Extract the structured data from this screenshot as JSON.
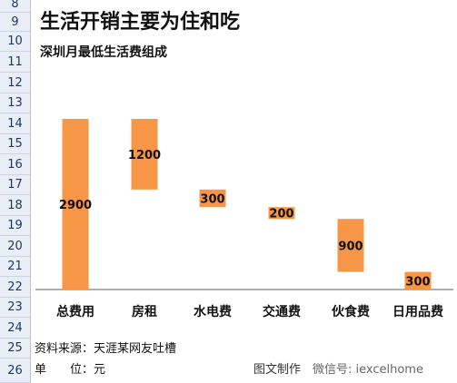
{
  "row_numbers": [
    "8",
    "9",
    "10",
    "11",
    "12",
    "13",
    "14",
    "15",
    "16",
    "17",
    "18",
    "19",
    "20",
    "21",
    "22",
    "23",
    "24",
    "25",
    "26"
  ],
  "title": "生活开销主要为住和吃",
  "subtitle": "深圳月最低生活费组成",
  "source_note": "资料来源：天涯某网友吐槽",
  "unit_note": "单　　位：元",
  "credit_note": "图文制作",
  "watermark": "微信号: iexcelhome",
  "colors": {
    "bar": "#f79646",
    "axis": "#7f7f7f",
    "rownum_bg": "#e9eef6"
  },
  "chart_data": {
    "type": "bar",
    "subtype": "waterfall",
    "categories": [
      "总费用",
      "房租",
      "水电费",
      "交通费",
      "伙食费",
      "日用品费"
    ],
    "values": [
      2900,
      1200,
      300,
      200,
      900,
      300
    ],
    "bases": [
      0,
      1700,
      1400,
      1200,
      300,
      0
    ],
    "ylim": [
      0,
      2900
    ],
    "grid": false,
    "legend": "none"
  }
}
